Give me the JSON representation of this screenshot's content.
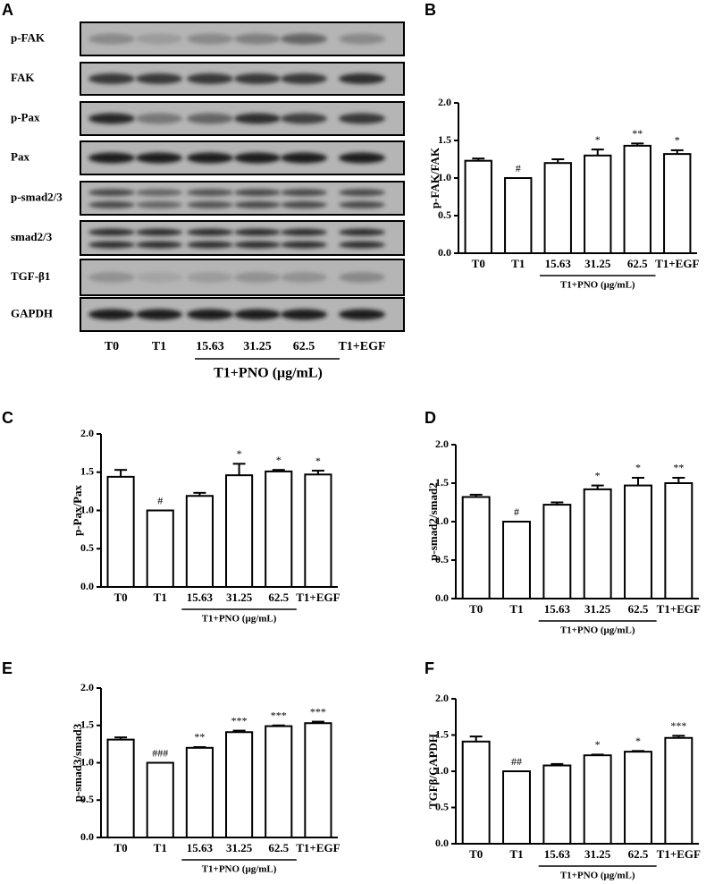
{
  "blot": {
    "panel": "A",
    "rows": [
      "p-FAK",
      "FAK",
      "p-Pax",
      "Pax",
      "p-smad2/3",
      "smad2/3",
      "TGF-β1",
      "GAPDH"
    ],
    "lanes": [
      "T0",
      "T1",
      "15.63",
      "31.25",
      "62.5",
      "T1+EGF"
    ],
    "group_label": "T1+PNO (μg/mL)"
  },
  "chart_data": [
    {
      "type": "bar",
      "panel": "B",
      "y_label": "p-FAK/FAK",
      "categories": [
        "T0",
        "T1",
        "15.63",
        "31.25",
        "62.5",
        "T1+EGF"
      ],
      "values": [
        1.23,
        1.0,
        1.2,
        1.3,
        1.43,
        1.32
      ],
      "errors": [
        0.03,
        0,
        0.05,
        0.08,
        0.03,
        0.05
      ],
      "annotations": [
        null,
        "#",
        null,
        "*",
        "**",
        "*"
      ],
      "group_label": "T1+PNO (μg/mL)",
      "ylim": [
        0,
        2
      ],
      "yticks": [
        {
          "value": 0,
          "label": "0.0"
        },
        0.5,
        {
          "value": 1,
          "label": "1.0"
        },
        1.5,
        {
          "value": 2,
          "label": "2.0"
        }
      ]
    },
    {
      "type": "bar",
      "panel": "C",
      "y_label": "p-Pax/Pax",
      "categories": [
        "T0",
        "T1",
        "15.63",
        "31.25",
        "62.5",
        "T1+EGF"
      ],
      "values": [
        1.44,
        1.0,
        1.19,
        1.46,
        1.51,
        1.47
      ],
      "errors": [
        0.09,
        0,
        0.04,
        0.15,
        0.02,
        0.05
      ],
      "annotations": [
        null,
        "#",
        null,
        "*",
        "*",
        "*"
      ],
      "group_label": "T1+PNO (μg/mL)",
      "ylim": [
        0,
        2
      ],
      "yticks": [
        {
          "value": 0,
          "label": "0.0"
        },
        0.5,
        {
          "value": 1,
          "label": "1.0"
        },
        1.5,
        {
          "value": 2,
          "label": "2.0"
        }
      ]
    },
    {
      "type": "bar",
      "panel": "D",
      "y_label": "p-smad2/smad2",
      "categories": [
        "T0",
        "T1",
        "15.63",
        "31.25",
        "62.5",
        "T1+EGF"
      ],
      "values": [
        1.32,
        1.0,
        1.22,
        1.42,
        1.47,
        1.5
      ],
      "errors": [
        0.03,
        0,
        0.03,
        0.05,
        0.1,
        0.07
      ],
      "annotations": [
        null,
        "#",
        null,
        "*",
        "*",
        "**"
      ],
      "group_label": "T1+PNO (μg/mL)",
      "ylim": [
        0,
        2
      ],
      "yticks": [
        {
          "value": 0,
          "label": "0.0"
        },
        0.5,
        {
          "value": 1,
          "label": "1.0"
        },
        1.5,
        {
          "value": 2,
          "label": "2.0"
        }
      ]
    },
    {
      "type": "bar",
      "panel": "E",
      "y_label": "p-smad3/smad3",
      "categories": [
        "T0",
        "T1",
        "15.63",
        "31.25",
        "62.5",
        "T1+EGF"
      ],
      "values": [
        1.31,
        1.0,
        1.2,
        1.41,
        1.49,
        1.53
      ],
      "errors": [
        0.03,
        0,
        0.01,
        0.02,
        0.01,
        0.02
      ],
      "annotations": [
        null,
        "###",
        "**",
        "***",
        "***",
        "***"
      ],
      "group_label": "T1+PNO (μg/mL)",
      "ylim": [
        0,
        2
      ],
      "yticks": [
        {
          "value": 0,
          "label": "0.0"
        },
        0.5,
        {
          "value": 1,
          "label": "1.0"
        },
        1.5,
        {
          "value": 2,
          "label": "2.0"
        }
      ]
    },
    {
      "type": "bar",
      "panel": "F",
      "y_label": "TGFβ/GAPDH",
      "categories": [
        "T0",
        "T1",
        "15.63",
        "31.25",
        "62.5",
        "T1+EGF"
      ],
      "values": [
        1.41,
        1.0,
        1.08,
        1.22,
        1.27,
        1.46
      ],
      "errors": [
        0.07,
        0,
        0.02,
        0.01,
        0.01,
        0.03
      ],
      "annotations": [
        null,
        "##",
        null,
        "*",
        "*",
        "***"
      ],
      "group_label": "T1+PNO (μg/mL)",
      "ylim": [
        0,
        2
      ],
      "yticks": [
        {
          "value": 0,
          "label": "0.0"
        },
        0.5,
        {
          "value": 1,
          "label": "1.0"
        },
        1.5,
        {
          "value": 2,
          "label": "2.0"
        }
      ]
    }
  ]
}
